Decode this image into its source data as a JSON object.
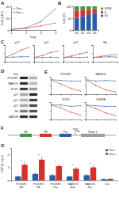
{
  "panel_labels": [
    "A",
    "B",
    "C",
    "D",
    "E",
    "F",
    "G"
  ],
  "chart_data": [
    {
      "type": "line",
      "x_label": "Days",
      "y_label": "Cells (×10⁵)",
      "x": [
        0,
        2,
        4,
        6
      ],
      "xlim": [
        0,
        6
      ],
      "xticks": [
        0,
        2,
        4,
        6
      ],
      "ylim": [
        0,
        40
      ],
      "yticks": [
        0,
        20,
        40
      ],
      "legend": "upper left",
      "marker": "circle",
      "series": [
        {
          "name": "Dox -",
          "color": "#2b5ca8",
          "values": [
            1,
            4,
            14,
            36
          ]
        },
        {
          "name": "Dox +",
          "color": "#d7302a",
          "values": [
            1,
            3,
            7,
            12
          ]
        }
      ]
    },
    {
      "type": "bar",
      "stacked": true,
      "y_label": "Cells (%)",
      "categories": [
        "D0",
        "D2",
        "D4",
        "D6"
      ],
      "ylim": [
        0,
        100
      ],
      "yticks": [
        0,
        50,
        100
      ],
      "legend": "right",
      "series": [
        {
          "name": "G1",
          "color": "#2b5ca8",
          "values": [
            52,
            58,
            66,
            72
          ]
        },
        {
          "name": "S",
          "color": "#d7302a",
          "values": [
            30,
            26,
            20,
            16
          ]
        },
        {
          "name": "G2/M",
          "color": "#3c9a44",
          "values": [
            18,
            16,
            14,
            12
          ]
        }
      ]
    },
    {
      "type": "line",
      "title": "p27",
      "x": [
        0,
        2,
        4,
        6
      ],
      "xlim": [
        0,
        6
      ],
      "xticks": [
        0,
        2,
        4,
        6
      ],
      "ylim": [
        0,
        4
      ],
      "yticks": [
        0,
        2,
        4
      ],
      "tick_labels": false,
      "marker": "circle",
      "series": [
        {
          "name": "Dox -",
          "color": "#2b5ca8",
          "values": [
            1,
            1.1,
            1.2,
            1.2
          ]
        },
        {
          "name": "Dox +",
          "color": "#d7302a",
          "values": [
            1,
            1.8,
            2.8,
            3.5
          ]
        }
      ]
    },
    {
      "type": "line",
      "title": "p21",
      "x": [
        0,
        2,
        4,
        6
      ],
      "xlim": [
        0,
        6
      ],
      "xticks": [
        0,
        2,
        4,
        6
      ],
      "ylim": [
        0,
        4
      ],
      "yticks": [
        0,
        2,
        4
      ],
      "tick_labels": false,
      "marker": "circle",
      "series": [
        {
          "name": "Dox -",
          "color": "#2b5ca8",
          "values": [
            1,
            1,
            1.1,
            1
          ]
        },
        {
          "name": "Dox +",
          "color": "#d7302a",
          "values": [
            1,
            1.5,
            2.2,
            2.6
          ]
        }
      ]
    },
    {
      "type": "line",
      "title": "p57",
      "x": [
        0,
        2,
        4,
        6
      ],
      "xlim": [
        0,
        6
      ],
      "xticks": [
        0,
        2,
        4,
        6
      ],
      "ylim": [
        0,
        4
      ],
      "yticks": [
        0,
        2,
        4
      ],
      "tick_labels": false,
      "marker": "circle",
      "series": [
        {
          "name": "Dox -",
          "color": "#2b5ca8",
          "values": [
            1,
            1.1,
            1,
            1.1
          ]
        },
        {
          "name": "Dox +",
          "color": "#d7302a",
          "values": [
            1,
            1.4,
            1.9,
            2.3
          ]
        }
      ]
    },
    {
      "type": "line",
      "title": "Rb",
      "x": [
        0,
        2,
        4,
        6
      ],
      "xlim": [
        0,
        6
      ],
      "xticks": [
        0,
        2,
        4,
        6
      ],
      "ylim": [
        0,
        4
      ],
      "yticks": [
        0,
        2,
        4
      ],
      "tick_labels": false,
      "marker": "circle",
      "series": [
        {
          "name": "Dox -",
          "color": "#2b5ca8",
          "values": [
            1,
            1.1,
            1.2,
            1.1
          ]
        },
        {
          "name": "Dox +",
          "color": "#d7302a",
          "values": [
            1,
            1.3,
            1.6,
            1.7
          ]
        }
      ]
    },
    {
      "type": "line",
      "title": "POU5F1",
      "x": [
        0,
        2,
        4,
        6
      ],
      "xlim": [
        0,
        6
      ],
      "xticks": [
        0,
        2,
        4,
        6
      ],
      "ylim": [
        0,
        1.2
      ],
      "yticks": [
        0,
        0.6,
        1.2
      ],
      "tick_labels": false,
      "marker": "circle",
      "series": [
        {
          "name": "Dox -",
          "color": "#2b5ca8",
          "values": [
            1,
            0.95,
            0.9,
            0.9
          ]
        },
        {
          "name": "Dox +",
          "color": "#d7302a",
          "values": [
            1,
            0.7,
            0.4,
            0.2
          ]
        }
      ]
    },
    {
      "type": "line",
      "title": "NANOG",
      "x": [
        0,
        2,
        4,
        6
      ],
      "xlim": [
        0,
        6
      ],
      "xticks": [
        0,
        2,
        4,
        6
      ],
      "ylim": [
        0,
        1.2
      ],
      "yticks": [
        0,
        0.6,
        1.2
      ],
      "tick_labels": false,
      "marker": "circle",
      "series": [
        {
          "name": "Dox -",
          "color": "#2b5ca8",
          "values": [
            1,
            0.9,
            0.95,
            0.9
          ]
        },
        {
          "name": "Dox +",
          "color": "#d7302a",
          "values": [
            1,
            0.6,
            0.3,
            0.15
          ]
        }
      ]
    },
    {
      "type": "line",
      "title": "SOX2",
      "x": [
        0,
        2,
        4,
        6
      ],
      "xlim": [
        0,
        6
      ],
      "xticks": [
        0,
        2,
        4,
        6
      ],
      "ylim": [
        0,
        1.2
      ],
      "yticks": [
        0,
        0.6,
        1.2
      ],
      "tick_labels": false,
      "marker": "circle",
      "series": [
        {
          "name": "Dox -",
          "color": "#2b5ca8",
          "values": [
            1,
            1,
            0.9,
            0.95
          ]
        },
        {
          "name": "Dox +",
          "color": "#d7302a",
          "values": [
            1,
            0.8,
            0.5,
            0.3
          ]
        }
      ]
    },
    {
      "type": "line",
      "title": "LIN28A",
      "x": [
        0,
        2,
        4,
        6
      ],
      "xlim": [
        0,
        6
      ],
      "xticks": [
        0,
        2,
        4,
        6
      ],
      "ylim": [
        0,
        1.2
      ],
      "yticks": [
        0,
        0.6,
        1.2
      ],
      "tick_labels": false,
      "marker": "circle",
      "series": [
        {
          "name": "Dox -",
          "color": "#2b5ca8",
          "values": [
            1,
            0.95,
            0.9,
            0.9
          ]
        },
        {
          "name": "Dox +",
          "color": "#d7302a",
          "values": [
            1,
            0.75,
            0.45,
            0.25
          ]
        }
      ]
    },
    {
      "type": "bar",
      "y_label": "ChIP (% input)",
      "categories": [
        "POU5F1 DE",
        "POU5F1 PE",
        "POU5F1 Pro",
        "NANOG Enh",
        "NANOG Pro",
        "Ctrl"
      ],
      "ylim": [
        0,
        2.5
      ],
      "yticks": [
        0,
        1,
        2
      ],
      "legend": "upper right",
      "series": [
        {
          "name": "Dox -",
          "color": "#2b5ca8",
          "values": [
            0.3,
            0.5,
            0.4,
            0.3,
            0.4,
            0.1
          ],
          "errors": [
            0.05,
            0.08,
            0.06,
            0.05,
            0.06,
            0.02
          ]
        },
        {
          "name": "Dox +",
          "color": "#d7302a",
          "values": [
            1.2,
            1.6,
            1.1,
            0.9,
            1.0,
            0.12
          ],
          "errors": [
            0.15,
            0.2,
            0.12,
            0.1,
            0.12,
            0.03
          ]
        }
      ],
      "annotations": [
        {
          "text": "*",
          "category": 0
        },
        {
          "text": "**",
          "category": 1
        },
        {
          "text": "*",
          "category": 2
        },
        {
          "text": "*",
          "category": 3
        },
        {
          "text": "*",
          "category": 4
        }
      ]
    }
  ],
  "blot": {
    "header": "Dox",
    "columns": [
      "−",
      "+"
    ],
    "rows": [
      {
        "label": "POU5F1",
        "levels": [
          0.9,
          0.25
        ]
      },
      {
        "label": "NANOG",
        "levels": [
          0.85,
          0.2
        ]
      },
      {
        "label": "SOX2",
        "levels": [
          0.8,
          0.35
        ]
      },
      {
        "label": "p27",
        "levels": [
          0.3,
          0.9
        ]
      },
      {
        "label": "p21",
        "levels": [
          0.25,
          0.8
        ]
      },
      {
        "label": "p57",
        "levels": [
          0.3,
          0.75
        ]
      },
      {
        "label": "Rb",
        "levels": [
          0.5,
          0.7
        ]
      },
      {
        "label": "GAPDH",
        "levels": [
          0.85,
          0.85
        ]
      }
    ]
  },
  "diagram": {
    "elements": [
      {
        "label": "DE",
        "color": "#3c9a44"
      },
      {
        "label": "PE",
        "color": "#d7302a"
      },
      {
        "label": "Pro",
        "color": "#2b5ca8"
      },
      {
        "label": "Exon 1",
        "color": "#9e9e9e"
      }
    ],
    "tss": "TSS"
  }
}
